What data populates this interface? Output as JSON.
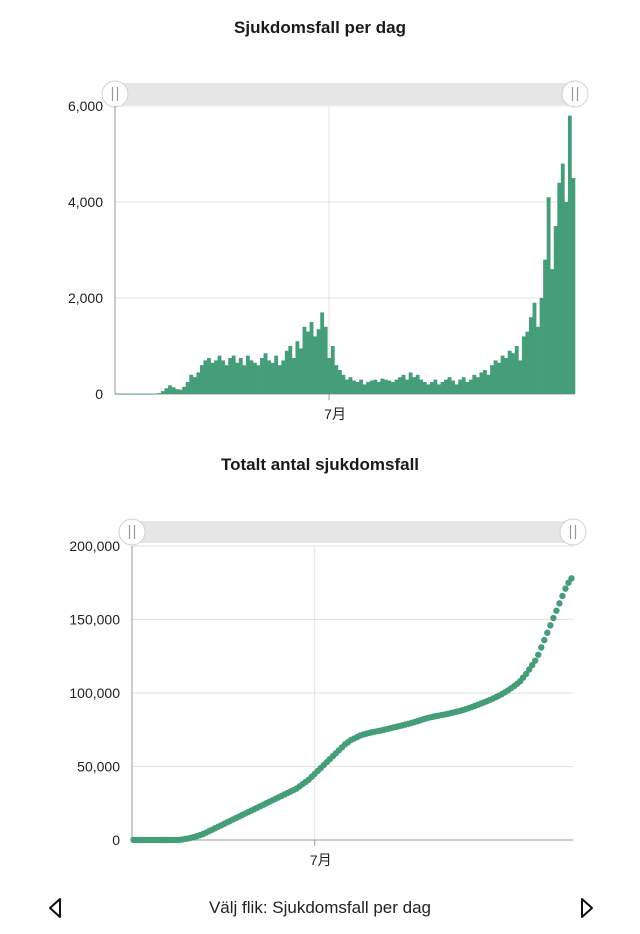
{
  "colors": {
    "series": "#459d7a",
    "grid": "#e3e3e3",
    "axis": "#999999",
    "slider_track": "#e6e6e6",
    "slider_handle": "#ffffff"
  },
  "footer": {
    "label": "Välj flik: Sjukdomsfall per dag",
    "prev_icon": "triangle-left-icon",
    "next_icon": "triangle-right-icon"
  },
  "chart_data": [
    {
      "type": "bar",
      "title": "Sjukdomsfall per dag",
      "xlabel": "",
      "ylabel": "",
      "ylim": [
        0,
        6000
      ],
      "yticks": [
        0,
        2000,
        4000,
        6000
      ],
      "ytick_labels": [
        "0",
        "2,000",
        "4,000",
        "6,000"
      ],
      "xtick_labels": [
        "7月"
      ],
      "x_tick_index": 60,
      "grid": true,
      "legend": "none",
      "values": [
        5,
        5,
        5,
        5,
        5,
        5,
        5,
        5,
        5,
        5,
        5,
        5,
        20,
        60,
        120,
        180,
        140,
        100,
        90,
        150,
        250,
        400,
        350,
        450,
        600,
        700,
        750,
        650,
        700,
        800,
        700,
        600,
        750,
        800,
        650,
        750,
        600,
        800,
        700,
        650,
        600,
        750,
        850,
        700,
        650,
        800,
        600,
        700,
        900,
        1000,
        750,
        1100,
        950,
        1400,
        1300,
        1500,
        1200,
        1350,
        1700,
        1400,
        750,
        1000,
        600,
        500,
        400,
        300,
        350,
        280,
        250,
        300,
        200,
        250,
        280,
        300,
        250,
        320,
        300,
        280,
        250,
        300,
        350,
        400,
        300,
        450,
        350,
        400,
        300,
        250,
        200,
        250,
        300,
        200,
        250,
        300,
        350,
        280,
        200,
        300,
        350,
        250,
        300,
        400,
        350,
        450,
        500,
        400,
        600,
        700,
        650,
        800,
        750,
        900,
        850,
        1000,
        700,
        1200,
        1300,
        1600,
        1900,
        1400,
        2000,
        2800,
        4100,
        2600,
        3500,
        4400,
        4800,
        4000,
        5800,
        4500
      ]
    },
    {
      "type": "scatter",
      "title": "Totalt antal sjukdomsfall",
      "xlabel": "",
      "ylabel": "",
      "ylim": [
        0,
        200000
      ],
      "yticks": [
        0,
        50000,
        100000,
        150000,
        200000
      ],
      "ytick_labels": [
        "0",
        "50,000",
        "100,000",
        "150,000",
        "200,000"
      ],
      "xtick_labels": [
        "7月"
      ],
      "x_tick_index": 60,
      "grid": true,
      "legend": "none",
      "values": [
        0,
        0,
        0,
        0,
        0,
        0,
        0,
        0,
        0,
        0,
        0,
        0,
        0,
        0,
        0,
        0,
        300,
        700,
        1000,
        1500,
        2000,
        2600,
        3300,
        4000,
        5000,
        6000,
        7000,
        8000,
        9000,
        10000,
        11000,
        12000,
        13000,
        14000,
        15000,
        16000,
        17000,
        18000,
        19000,
        20000,
        21000,
        22000,
        23000,
        24000,
        25000,
        26000,
        27000,
        28000,
        29000,
        30000,
        31000,
        32000,
        33000,
        34000,
        35000,
        36500,
        38000,
        39500,
        41000,
        43000,
        45000,
        47000,
        49000,
        51000,
        53000,
        55000,
        57000,
        59000,
        61000,
        63000,
        65000,
        66500,
        68000,
        69000,
        70000,
        71000,
        71700,
        72300,
        72800,
        73300,
        73700,
        74100,
        74500,
        75000,
        75500,
        76000,
        76500,
        77000,
        77500,
        78000,
        78500,
        79000,
        79600,
        80200,
        80800,
        81500,
        82200,
        82800,
        83300,
        83800,
        84200,
        84600,
        85000,
        85400,
        85800,
        86300,
        86800,
        87300,
        87800,
        88400,
        89000,
        89700,
        90400,
        91200,
        92000,
        92800,
        93600,
        94400,
        95300,
        96200,
        97200,
        98200,
        99300,
        100500,
        101800,
        103200,
        104700,
        106300,
        108000,
        110500,
        113000,
        116000,
        119000,
        122000,
        126000,
        131000,
        136000,
        141000,
        146000,
        151000,
        156000,
        161000,
        166000,
        171000,
        175000,
        178000
      ]
    }
  ],
  "charts": [
    {
      "title": "Sjukdomsfall per dag"
    },
    {
      "title": "Totalt antal sjukdomsfall"
    }
  ]
}
